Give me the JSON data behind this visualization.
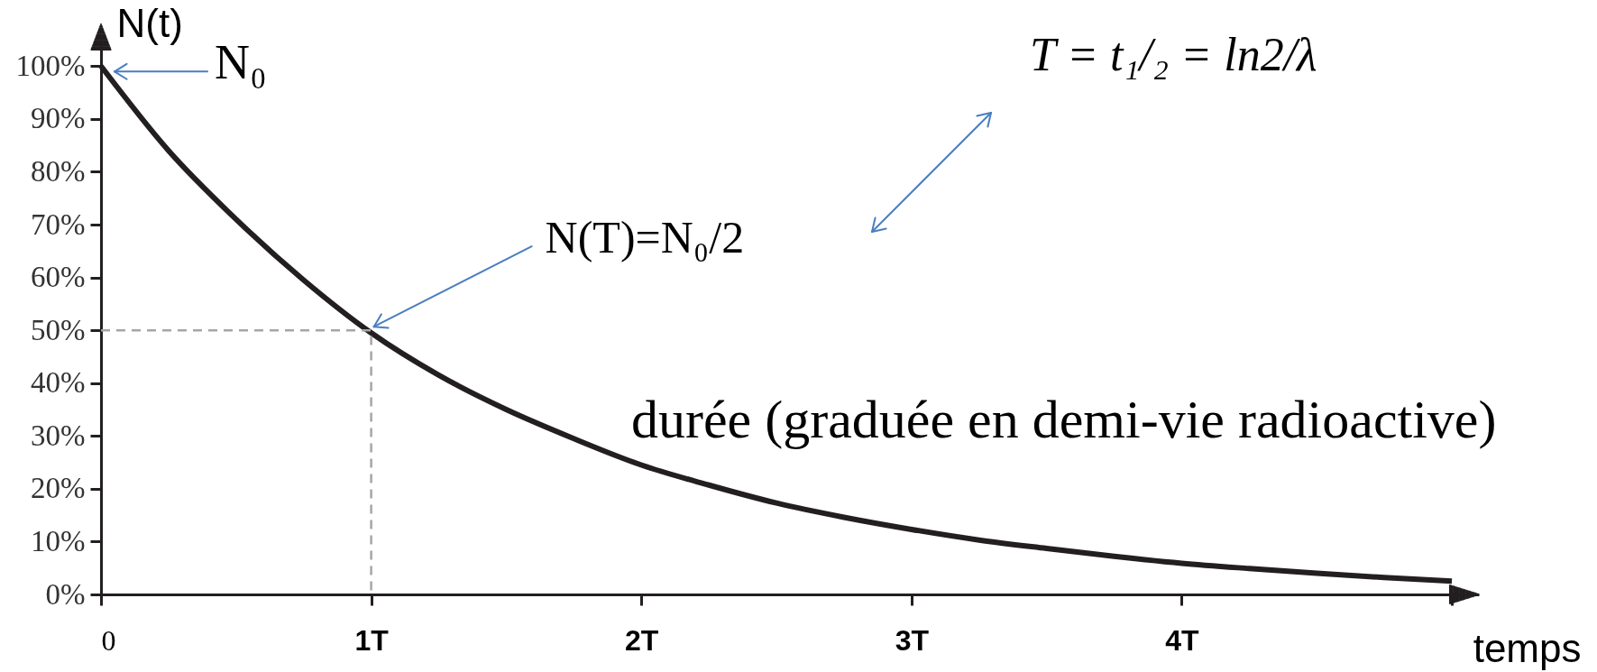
{
  "chart_data": {
    "type": "line",
    "xlabel": "temps",
    "ylabel": "N(t)",
    "xlim": [
      0,
      5.1
    ],
    "ylim": [
      0,
      105
    ],
    "xticks": [
      0,
      {
        "value": 1,
        "label": "1T"
      },
      {
        "value": 2,
        "label": "2T"
      },
      {
        "value": 3,
        "label": "3T"
      },
      {
        "value": 4,
        "label": "4T"
      },
      {
        "value": 5,
        "label": null
      }
    ],
    "yticks": [
      {
        "value": 0,
        "label": "0%"
      },
      {
        "value": 10,
        "label": "10%"
      },
      {
        "value": 20,
        "label": "20%"
      },
      {
        "value": 30,
        "label": "30%"
      },
      {
        "value": 40,
        "label": "40%"
      },
      {
        "value": 50,
        "label": "50%"
      },
      {
        "value": 60,
        "label": "60%"
      },
      {
        "value": 70,
        "label": "70%"
      },
      {
        "value": 80,
        "label": "80%"
      },
      {
        "value": 90,
        "label": "90%"
      },
      {
        "value": 100,
        "label": "100%"
      }
    ],
    "series": [
      {
        "color": "#231f20",
        "x": [
          0,
          0.25,
          0.5,
          0.75,
          1,
          1.25,
          1.5,
          1.75,
          2,
          2.25,
          2.5,
          2.75,
          3,
          3.25,
          3.5,
          3.75,
          4,
          4.25,
          4.5,
          4.75,
          5
        ],
        "values": [
          100,
          84,
          71,
          59.5,
          49.5,
          41.5,
          35,
          29.5,
          24.5,
          20.7,
          17.3,
          14.6,
          12.3,
          10.3,
          8.7,
          7.2,
          5.9,
          4.9,
          4,
          3.2,
          2.5
        ]
      },
      {
        "color": "#a6a6a6",
        "line_style": "dashed",
        "x": [
          0,
          1,
          1
        ],
        "values": [
          50,
          50,
          0
        ]
      }
    ],
    "annotations": [
      {
        "text": "N₀",
        "x": 0,
        "y": 100
      },
      {
        "text": "N(T)=N₀/2",
        "x": 1,
        "y": 50
      },
      "T = t₁/₂ = ln2/λ",
      "durée (graduée en demi-vie radioactive)"
    ]
  }
}
